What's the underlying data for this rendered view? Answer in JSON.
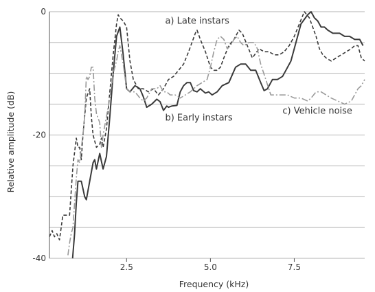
{
  "chart_data": {
    "type": "line",
    "xlabel": "Frequency (kHz)",
    "ylabel": "Relative amplitude (dB)",
    "xlim": [
      0.2,
      9.6
    ],
    "ylim": [
      -40,
      0
    ],
    "x_ticks": [
      2.5,
      5.0,
      7.5
    ],
    "x_tick_labels": [
      "2.5",
      "5.0",
      "7.5"
    ],
    "y_ticks": [
      -40,
      -35,
      -30,
      -25,
      -20,
      -15,
      -10,
      -5,
      0
    ],
    "y_tick_labels": [
      {
        "value": 0,
        "label": "0"
      },
      {
        "value": -20,
        "label": "-20"
      },
      {
        "value": -40,
        "label": "-40"
      }
    ],
    "grid": {
      "horizontal": true,
      "vertical": false
    },
    "annotations": [
      {
        "text": "a) Late instars",
        "series": "late",
        "x": 3.65,
        "y": -1.5
      },
      {
        "text": "b) Early instars",
        "series": "early",
        "x": 3.65,
        "y": -17.2
      },
      {
        "text": "c) Vehicle noise",
        "series": "vehicle",
        "x": 7.15,
        "y": -16.1
      }
    ],
    "series": [
      {
        "id": "early",
        "color": "#3a3a3a",
        "dash": "",
        "width": 2,
        "x": [
          0.89,
          0.95,
          1.0,
          1.05,
          1.15,
          1.25,
          1.3,
          1.4,
          1.5,
          1.55,
          1.6,
          1.7,
          1.8,
          1.9,
          2.0,
          2.1,
          2.2,
          2.3,
          2.4,
          2.5,
          2.6,
          2.75,
          2.9,
          3.0,
          3.1,
          3.25,
          3.4,
          3.5,
          3.6,
          3.7,
          3.75,
          3.85,
          4.0,
          4.1,
          4.2,
          4.3,
          4.4,
          4.5,
          4.6,
          4.7,
          4.85,
          4.95,
          5.05,
          5.2,
          5.35,
          5.55,
          5.75,
          5.9,
          6.05,
          6.2,
          6.35,
          6.5,
          6.6,
          6.7,
          6.85,
          7.0,
          7.15,
          7.25,
          7.4,
          7.55,
          7.7,
          7.9,
          8.0,
          8.1,
          8.2,
          8.3,
          8.4,
          8.5,
          8.65,
          8.85,
          9.0,
          9.15,
          9.3,
          9.45,
          9.55
        ],
        "y": [
          -40,
          -36,
          -31,
          -27.5,
          -27.5,
          -30,
          -30.5,
          -27.5,
          -24.5,
          -24,
          -25.5,
          -23,
          -25.5,
          -23.5,
          -17,
          -10,
          -4,
          -2.5,
          -7,
          -12.5,
          -13,
          -12,
          -12.5,
          -13.8,
          -15.5,
          -15,
          -14.2,
          -14.6,
          -16,
          -15.3,
          -15.5,
          -15.3,
          -15.2,
          -13,
          -12,
          -11.5,
          -11.5,
          -12.8,
          -13,
          -12.5,
          -13.2,
          -13,
          -13.5,
          -13,
          -12,
          -11.5,
          -9,
          -8.5,
          -8.5,
          -9.5,
          -9.5,
          -11.5,
          -12.8,
          -12.5,
          -11,
          -11,
          -10.5,
          -9.5,
          -8,
          -5,
          -2,
          -0.5,
          0,
          -1,
          -1.5,
          -2.5,
          -2.5,
          -3,
          -3.5,
          -3.5,
          -4,
          -4,
          -4.5,
          -4.5,
          -5.5
        ]
      },
      {
        "id": "late",
        "color": "#3a3a3a",
        "dash": "5,3",
        "width": 1.6,
        "x": [
          0.2,
          0.28,
          0.35,
          0.42,
          0.5,
          0.55,
          0.6,
          0.7,
          0.8,
          0.9,
          1.0,
          1.05,
          1.1,
          1.15,
          1.2,
          1.3,
          1.4,
          1.45,
          1.5,
          1.6,
          1.7,
          1.75,
          1.8,
          1.9,
          2.0,
          2.1,
          2.2,
          2.25,
          2.3,
          2.4,
          2.5,
          2.6,
          2.7,
          2.85,
          3.0,
          3.15,
          3.3,
          3.45,
          3.6,
          3.75,
          3.9,
          4.05,
          4.2,
          4.35,
          4.45,
          4.55,
          4.6,
          4.7,
          4.85,
          5.0,
          5.1,
          5.2,
          5.3,
          5.4,
          5.55,
          5.7,
          5.85,
          5.95,
          6.1,
          6.25,
          6.45,
          6.6,
          6.75,
          6.9,
          7.05,
          7.2,
          7.35,
          7.5,
          7.65,
          7.8,
          7.95,
          8.05,
          8.15,
          8.25,
          8.35,
          8.45,
          8.6,
          8.75,
          8.9,
          9.05,
          9.2,
          9.3,
          9.4,
          9.5,
          9.6
        ],
        "y": [
          -36.5,
          -35.5,
          -36.5,
          -36,
          -37,
          -35,
          -33,
          -33,
          -33,
          -25,
          -20.5,
          -22,
          -22,
          -24,
          -20,
          -14,
          -12.5,
          -17,
          -20,
          -22,
          -21.5,
          -20.5,
          -22,
          -19,
          -13,
          -7,
          -2,
          -0.5,
          -1,
          -1.5,
          -2.5,
          -8,
          -11,
          -12.5,
          -12.5,
          -13,
          -12.5,
          -13.5,
          -12.5,
          -11,
          -10.5,
          -9.5,
          -8.5,
          -6.5,
          -5,
          -3.5,
          -3,
          -4.5,
          -6.5,
          -9,
          -9.5,
          -9.5,
          -9,
          -7.5,
          -5.5,
          -4.5,
          -3,
          -3.5,
          -5.5,
          -7.5,
          -6,
          -6.5,
          -6.5,
          -7,
          -7,
          -6.5,
          -5.5,
          -4,
          -2,
          0,
          -1,
          -2.5,
          -4,
          -6,
          -7,
          -7.5,
          -8,
          -7.5,
          -7,
          -6.5,
          -6,
          -5.5,
          -5.5,
          -7.5,
          -8
        ]
      },
      {
        "id": "vehicle",
        "color": "#9a9a9a",
        "dash": "9,3,2,3",
        "width": 1.6,
        "x": [
          0.75,
          0.8,
          0.85,
          0.9,
          0.95,
          1.0,
          1.05,
          1.1,
          1.15,
          1.2,
          1.25,
          1.3,
          1.35,
          1.4,
          1.45,
          1.5,
          1.55,
          1.6,
          1.7,
          1.75,
          1.8,
          1.9,
          2.0,
          2.1,
          2.2,
          2.25,
          2.3,
          2.4,
          2.5,
          2.6,
          2.75,
          2.9,
          3.0,
          3.1,
          3.25,
          3.4,
          3.5,
          3.6,
          3.7,
          3.8,
          3.95,
          4.1,
          4.25,
          4.4,
          4.5,
          4.6,
          4.75,
          4.9,
          5.0,
          5.1,
          5.2,
          5.3,
          5.4,
          5.5,
          5.6,
          5.7,
          5.8,
          5.9,
          6.0,
          6.15,
          6.3,
          6.4,
          6.5,
          6.65,
          6.8,
          6.95,
          7.1,
          7.3,
          7.5,
          7.7,
          7.9,
          8.0,
          8.15,
          8.3,
          8.45,
          8.6,
          8.8,
          9.0,
          9.2,
          9.4,
          9.5,
          9.6
        ],
        "y": [
          -39.5,
          -37.5,
          -36,
          -35,
          -31,
          -27,
          -24,
          -24.5,
          -22,
          -20,
          -17,
          -10.5,
          -11,
          -10.5,
          -9,
          -9,
          -14,
          -16.5,
          -18,
          -22,
          -20,
          -17,
          -14,
          -10,
          -8,
          -6.5,
          -5.5,
          -8.5,
          -12.5,
          -13,
          -13,
          -14,
          -14.5,
          -14,
          -12.5,
          -12.5,
          -12,
          -13,
          -13,
          -13.5,
          -13.5,
          -14,
          -13.5,
          -13,
          -12.5,
          -12,
          -11.5,
          -11,
          -9,
          -6.5,
          -4.5,
          -4,
          -4.5,
          -6,
          -5.5,
          -4.5,
          -4,
          -5,
          -5.5,
          -5,
          -5,
          -6,
          -8.5,
          -11,
          -13.5,
          -13.5,
          -13.5,
          -13.5,
          -14,
          -14,
          -14.5,
          -14,
          -13,
          -13,
          -13.5,
          -14,
          -14.5,
          -15,
          -14.5,
          -12.5,
          -12,
          -11
        ]
      }
    ]
  }
}
